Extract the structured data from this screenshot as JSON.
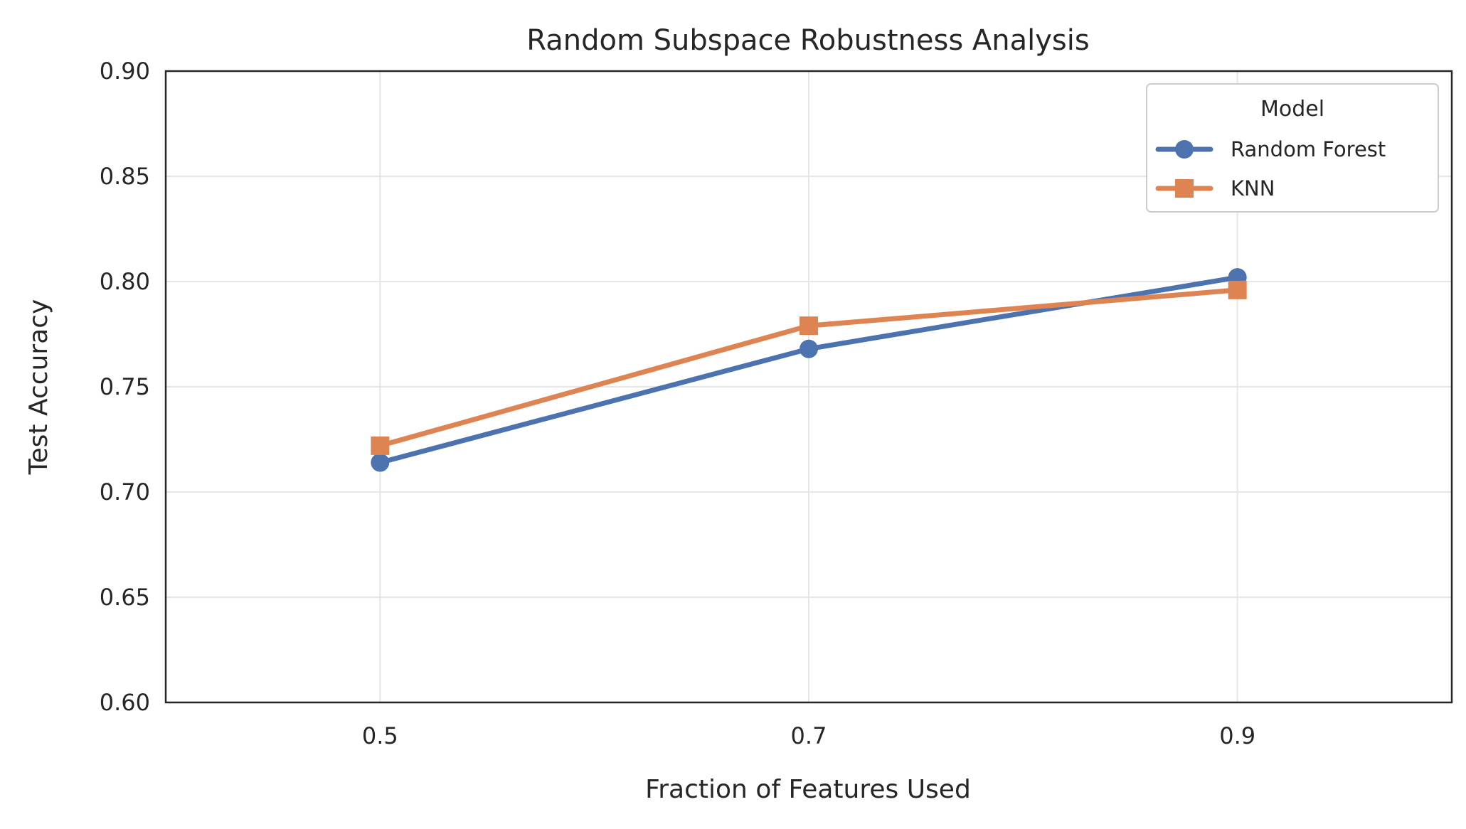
{
  "chart_data": {
    "type": "line",
    "title": "Random Subspace Robustness Analysis",
    "xlabel": "Fraction of Features Used",
    "ylabel": "Test Accuracy",
    "x": [
      0.5,
      0.7,
      0.9
    ],
    "x_ticks": [
      0.5,
      0.7,
      0.9
    ],
    "x_tick_labels": [
      "0.5",
      "0.7",
      "0.9"
    ],
    "xlim": [
      0.4,
      1.0
    ],
    "ylim": [
      0.6,
      0.9
    ],
    "y_ticks": [
      0.6,
      0.65,
      0.7,
      0.75,
      0.8,
      0.85,
      0.9
    ],
    "y_tick_labels": [
      "0.60",
      "0.65",
      "0.70",
      "0.75",
      "0.80",
      "0.85",
      "0.90"
    ],
    "grid": true,
    "legend": {
      "title": "Model",
      "placement": "top-right"
    },
    "series": [
      {
        "name": "Random Forest",
        "values": [
          0.714,
          0.768,
          0.802
        ],
        "color": "#4c72b0",
        "marker": "circle"
      },
      {
        "name": "KNN",
        "values": [
          0.722,
          0.779,
          0.796
        ],
        "color": "#dd8452",
        "marker": "square"
      }
    ]
  }
}
